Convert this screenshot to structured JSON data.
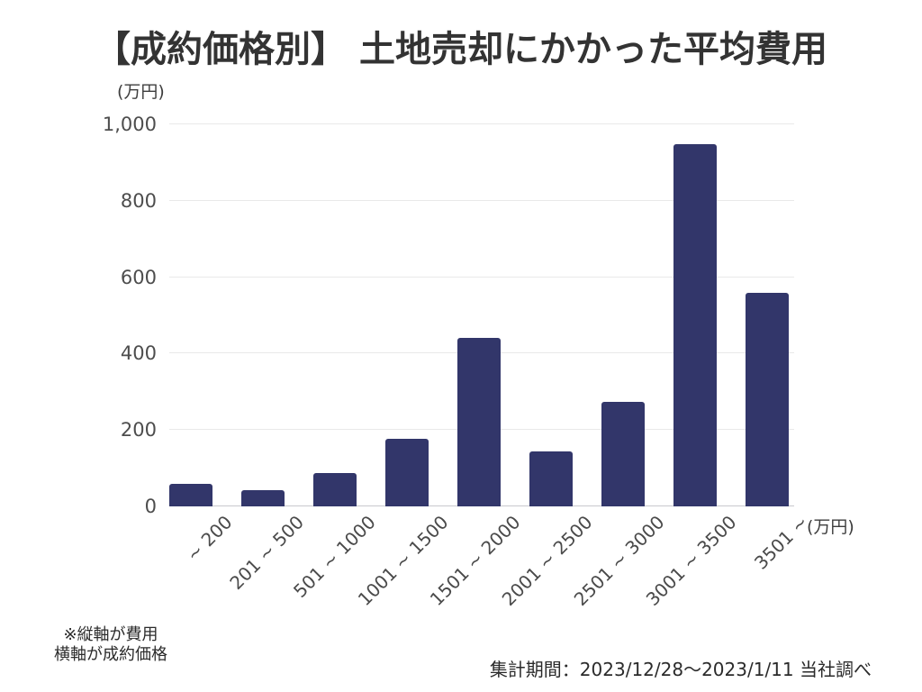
{
  "title": "【成約価格別】 土地売却にかかった平均費用",
  "y_axis_unit": "(万円)",
  "x_axis_unit": "(万円)",
  "footnote": {
    "line1": "※縦軸が費用",
    "line2": "横軸が成約価格"
  },
  "source": "集計期間：2023/12/28〜2023/1/11 当社調べ",
  "chart_data": {
    "type": "bar",
    "title": "【成約価格別】 土地売却にかかった平均費用",
    "categories": [
      "~ 200",
      "201 ~ 500",
      "501 ~ 1000",
      "1001 ~ 1500",
      "1501 ~ 2000",
      "2001 ~ 2500",
      "2501 ~ 3000",
      "3001 ~ 3500",
      "3501 ~"
    ],
    "values": [
      60,
      42,
      87,
      178,
      441,
      143,
      273,
      948,
      559
    ],
    "xlabel": "成約価格 (万円)",
    "ylabel": "費用 (万円)",
    "ylim": [
      0,
      1000
    ],
    "ytick_step": 200,
    "ytick_labels": [
      "0",
      "200",
      "400",
      "600",
      "800",
      "1,000"
    ],
    "grid": true,
    "legend_position": "none",
    "bar_color": "#32366a",
    "gridline_color": "#e9e9e9",
    "axis_line_color": "#c9c9ce",
    "x_tick_rotation_deg": -45
  }
}
